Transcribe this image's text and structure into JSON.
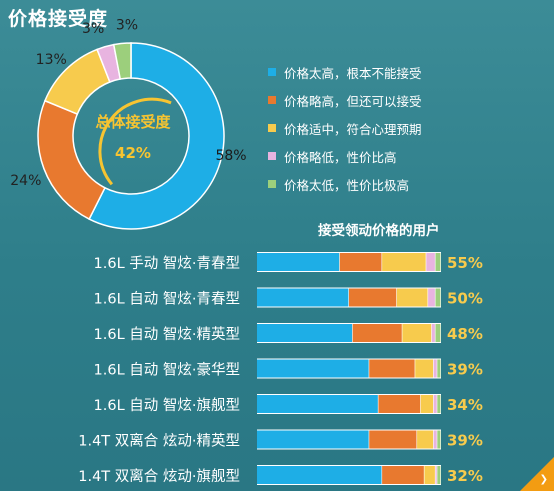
{
  "title": "价格接受度",
  "chart_data": [
    {
      "type": "pie",
      "variant": "donut",
      "center_label": "总体接受度",
      "center_value": "42%",
      "categories": [
        "价格太高，根本不能接受",
        "价格略高，但还可以接受",
        "价格适中，符合心理预期",
        "价格略低，性价比高",
        "价格太低，性价比极高"
      ],
      "values": [
        58,
        24,
        13,
        3,
        3
      ],
      "value_labels": [
        "58%",
        "24%",
        "13%",
        "3%",
        "3%"
      ],
      "colors": [
        "#1eaee6",
        "#e8792f",
        "#f7cb4d",
        "#e8b4e0",
        "#9ccf7c"
      ]
    },
    {
      "type": "bar",
      "orientation": "horizontal",
      "stacked": true,
      "title": "接受领动价格的用户",
      "categories": [
        "1.6L 手动 智炫·青春型",
        "1.6L 自动 智炫·青春型",
        "1.6L 自动 智炫·精英型",
        "1.6L 自动 智炫·豪华型",
        "1.6L 自动 智炫·旗舰型",
        "1.4T 双离合 炫动·精英型",
        "1.4T 双离合 炫动·旗舰型"
      ],
      "series": [
        {
          "name": "价格太高，根本不能接受",
          "values": [
            45,
            50,
            52,
            61,
            66,
            61,
            68
          ]
        },
        {
          "name": "价格略高，但还可以接受",
          "values": [
            23,
            26,
            27,
            25,
            23,
            26,
            23
          ]
        },
        {
          "name": "价格适中，符合心理预期",
          "values": [
            24,
            17,
            16,
            10,
            7,
            9,
            6
          ]
        },
        {
          "name": "价格略低，性价比高",
          "values": [
            5,
            4,
            2,
            2,
            2,
            2,
            1
          ]
        },
        {
          "name": "价格太低，性价比极高",
          "values": [
            3,
            3,
            3,
            2,
            2,
            2,
            2
          ]
        }
      ],
      "value_labels": [
        "55%",
        "50%",
        "48%",
        "39%",
        "34%",
        "39%",
        "32%"
      ],
      "value_label_color": "#f7cb4d"
    }
  ]
}
